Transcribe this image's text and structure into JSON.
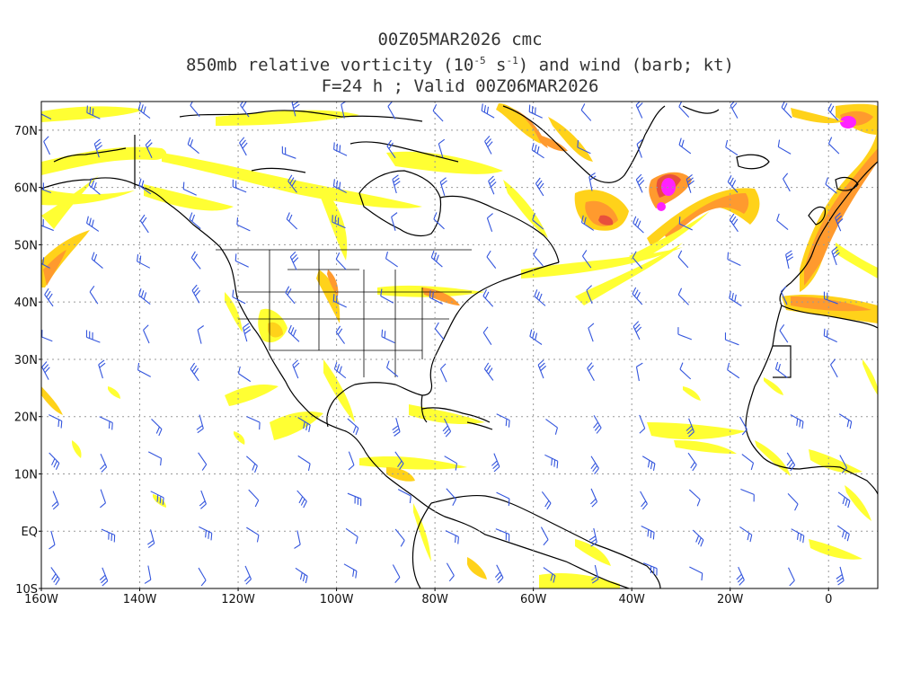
{
  "title": {
    "line1": "00Z05MAR2026 cmc",
    "line2_main": "850mb relative vorticity (10",
    "line2_exp1": "-5",
    "line2_mid": " s",
    "line2_exp2": "-1",
    "line2_tail": ") and wind (barb; kt)",
    "line3": "F=24 h ; Valid 00Z06MAR2026"
  },
  "map": {
    "lon_range": [
      -160,
      10
    ],
    "lat_range": [
      -10,
      75
    ],
    "lon_ticks": [
      {
        "value": -160,
        "label": "160W"
      },
      {
        "value": -140,
        "label": "140W"
      },
      {
        "value": -120,
        "label": "120W"
      },
      {
        "value": -100,
        "label": "100W"
      },
      {
        "value": -80,
        "label": "80W"
      },
      {
        "value": -60,
        "label": "60W"
      },
      {
        "value": -40,
        "label": "40W"
      },
      {
        "value": -20,
        "label": "20W"
      },
      {
        "value": 0,
        "label": "0"
      }
    ],
    "lat_ticks": [
      {
        "value": 70,
        "label": "70N"
      },
      {
        "value": 60,
        "label": "60N"
      },
      {
        "value": 50,
        "label": "50N"
      },
      {
        "value": 40,
        "label": "40N"
      },
      {
        "value": 30,
        "label": "30N"
      },
      {
        "value": 20,
        "label": "20N"
      },
      {
        "value": 10,
        "label": "10N"
      },
      {
        "value": 0,
        "label": "EQ"
      },
      {
        "value": -10,
        "label": "10S"
      }
    ],
    "grid_style": "dotted",
    "colors": {
      "vort_low": "#ffff33",
      "vort_mid": "#ffd21a",
      "vort_high": "#ff9a2e",
      "vort_max": "#e8503c",
      "vort_extreme": "#ff22ff",
      "coast": "#000000",
      "barb": "#3355dd",
      "grid": "#9a9a9a"
    }
  }
}
